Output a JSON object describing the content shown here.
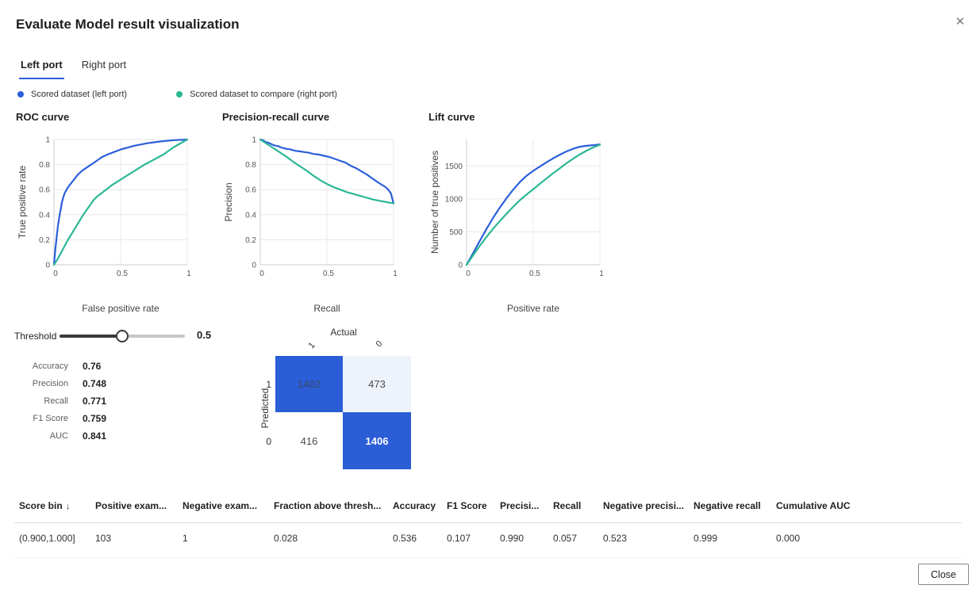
{
  "dialog": {
    "title": "Evaluate Model result visualization",
    "close_button_label": "Close"
  },
  "tabs": [
    {
      "label": "Left port",
      "active": true
    },
    {
      "label": "Right port",
      "active": false
    }
  ],
  "legend": [
    {
      "label": "Scored dataset (left port)",
      "color": "#2b5fd9"
    },
    {
      "label": "Scored dataset to compare (right port)",
      "color": "#2bb795"
    }
  ],
  "colors": {
    "series_blue": "#2b5fd9",
    "series_green": "#2bb795",
    "matrix_fill_strong": "#2b5dd6",
    "matrix_fill_light": "#edf2fb",
    "accent_blue": "#2b5fd9",
    "grid_line": "#e8e8e8",
    "axis_line": "#cccccc"
  },
  "threshold": {
    "label": "Threshold",
    "value": "0.5",
    "fraction": 0.5
  },
  "metrics": [
    {
      "label": "Accuracy",
      "value": "0.76"
    },
    {
      "label": "Precision",
      "value": "0.748"
    },
    {
      "label": "Recall",
      "value": "0.771"
    },
    {
      "label": "F1 Score",
      "value": "0.759"
    },
    {
      "label": "AUC",
      "value": "0.841"
    }
  ],
  "confusion_matrix": {
    "x_axis_label": "Actual",
    "y_axis_label": "Predicted",
    "col_labels": [
      "1",
      "0"
    ],
    "row_labels": [
      "1",
      "0"
    ],
    "cells": [
      [
        "1402",
        "473"
      ],
      [
        "416",
        "1406"
      ]
    ]
  },
  "chart_data": [
    {
      "type": "line",
      "title": "ROC curve",
      "xlabel": "False positive rate",
      "ylabel": "True positive rate",
      "xlim": [
        0,
        1
      ],
      "ylim": [
        0,
        1
      ],
      "xticks": [
        0,
        0.5,
        1
      ],
      "yticks": [
        0,
        0.2,
        0.4,
        0.6,
        0.8,
        1
      ],
      "grid": true,
      "legend_position": "top-shared",
      "series": [
        {
          "name": "Scored dataset (left port)",
          "color": "#2b5fd9",
          "points": [
            [
              0,
              0
            ],
            [
              0.005,
              0.06
            ],
            [
              0.01,
              0.12
            ],
            [
              0.02,
              0.22
            ],
            [
              0.03,
              0.31
            ],
            [
              0.04,
              0.38
            ],
            [
              0.05,
              0.44
            ],
            [
              0.06,
              0.5
            ],
            [
              0.07,
              0.54
            ],
            [
              0.08,
              0.57
            ],
            [
              0.1,
              0.61
            ],
            [
              0.12,
              0.64
            ],
            [
              0.15,
              0.68
            ],
            [
              0.18,
              0.72
            ],
            [
              0.21,
              0.75
            ],
            [
              0.25,
              0.78
            ],
            [
              0.28,
              0.8
            ],
            [
              0.32,
              0.83
            ],
            [
              0.36,
              0.86
            ],
            [
              0.4,
              0.88
            ],
            [
              0.45,
              0.9
            ],
            [
              0.5,
              0.92
            ],
            [
              0.55,
              0.935
            ],
            [
              0.6,
              0.95
            ],
            [
              0.7,
              0.97
            ],
            [
              0.8,
              0.985
            ],
            [
              0.9,
              0.995
            ],
            [
              1,
              1
            ]
          ]
        },
        {
          "name": "Scored dataset to compare (right port)",
          "color": "#2bb795",
          "points": [
            [
              0,
              0
            ],
            [
              0.03,
              0.05
            ],
            [
              0.06,
              0.11
            ],
            [
              0.1,
              0.19
            ],
            [
              0.14,
              0.26
            ],
            [
              0.18,
              0.33
            ],
            [
              0.22,
              0.4
            ],
            [
              0.26,
              0.46
            ],
            [
              0.3,
              0.52
            ],
            [
              0.33,
              0.55
            ],
            [
              0.38,
              0.59
            ],
            [
              0.44,
              0.64
            ],
            [
              0.5,
              0.68
            ],
            [
              0.56,
              0.72
            ],
            [
              0.62,
              0.76
            ],
            [
              0.68,
              0.8
            ],
            [
              0.75,
              0.84
            ],
            [
              0.82,
              0.88
            ],
            [
              0.9,
              0.94
            ],
            [
              1,
              1
            ]
          ]
        }
      ]
    },
    {
      "type": "line",
      "title": "Precision-recall curve",
      "xlabel": "Recall",
      "ylabel": "Precision",
      "xlim": [
        0,
        1
      ],
      "ylim": [
        0,
        1
      ],
      "xticks": [
        0,
        0.5,
        1
      ],
      "yticks": [
        0,
        0.2,
        0.4,
        0.6,
        0.8,
        1
      ],
      "grid": true,
      "legend_position": "top-shared",
      "series": [
        {
          "name": "Scored dataset (left port)",
          "color": "#2b5fd9",
          "points": [
            [
              0,
              1
            ],
            [
              0.02,
              0.995
            ],
            [
              0.04,
              0.98
            ],
            [
              0.06,
              0.975
            ],
            [
              0.08,
              0.965
            ],
            [
              0.1,
              0.955
            ],
            [
              0.12,
              0.95
            ],
            [
              0.14,
              0.945
            ],
            [
              0.16,
              0.935
            ],
            [
              0.18,
              0.93
            ],
            [
              0.2,
              0.925
            ],
            [
              0.23,
              0.92
            ],
            [
              0.26,
              0.91
            ],
            [
              0.3,
              0.905
            ],
            [
              0.33,
              0.9
            ],
            [
              0.36,
              0.895
            ],
            [
              0.4,
              0.885
            ],
            [
              0.44,
              0.88
            ],
            [
              0.48,
              0.87
            ],
            [
              0.52,
              0.86
            ],
            [
              0.56,
              0.845
            ],
            [
              0.6,
              0.83
            ],
            [
              0.64,
              0.815
            ],
            [
              0.68,
              0.79
            ],
            [
              0.72,
              0.77
            ],
            [
              0.76,
              0.745
            ],
            [
              0.8,
              0.72
            ],
            [
              0.84,
              0.69
            ],
            [
              0.88,
              0.66
            ],
            [
              0.91,
              0.64
            ],
            [
              0.94,
              0.62
            ],
            [
              0.96,
              0.6
            ],
            [
              0.98,
              0.57
            ],
            [
              0.99,
              0.53
            ],
            [
              1,
              0.49
            ]
          ]
        },
        {
          "name": "Scored dataset to compare (right port)",
          "color": "#2bb795",
          "points": [
            [
              0,
              1
            ],
            [
              0.05,
              0.965
            ],
            [
              0.1,
              0.93
            ],
            [
              0.15,
              0.895
            ],
            [
              0.2,
              0.86
            ],
            [
              0.25,
              0.82
            ],
            [
              0.3,
              0.785
            ],
            [
              0.35,
              0.75
            ],
            [
              0.4,
              0.71
            ],
            [
              0.45,
              0.675
            ],
            [
              0.5,
              0.645
            ],
            [
              0.55,
              0.62
            ],
            [
              0.6,
              0.6
            ],
            [
              0.65,
              0.58
            ],
            [
              0.7,
              0.565
            ],
            [
              0.75,
              0.55
            ],
            [
              0.8,
              0.535
            ],
            [
              0.85,
              0.52
            ],
            [
              0.9,
              0.51
            ],
            [
              0.95,
              0.5
            ],
            [
              1,
              0.49
            ]
          ]
        }
      ]
    },
    {
      "type": "line",
      "title": "Lift curve",
      "xlabel": "Positive rate",
      "ylabel": "Number of true positives",
      "xlim": [
        0,
        1
      ],
      "ylim": [
        0,
        1900
      ],
      "xticks": [
        0,
        0.5,
        1
      ],
      "yticks": [
        0,
        500,
        1000,
        1500
      ],
      "grid": true,
      "legend_position": "top-shared",
      "series": [
        {
          "name": "Scored dataset (left port)",
          "color": "#2b5fd9",
          "points": [
            [
              0,
              0
            ],
            [
              0.05,
              180
            ],
            [
              0.1,
              365
            ],
            [
              0.15,
              545
            ],
            [
              0.2,
              715
            ],
            [
              0.25,
              870
            ],
            [
              0.3,
              1010
            ],
            [
              0.35,
              1140
            ],
            [
              0.4,
              1255
            ],
            [
              0.45,
              1350
            ],
            [
              0.5,
              1425
            ],
            [
              0.55,
              1490
            ],
            [
              0.6,
              1555
            ],
            [
              0.65,
              1615
            ],
            [
              0.7,
              1670
            ],
            [
              0.75,
              1720
            ],
            [
              0.8,
              1760
            ],
            [
              0.85,
              1790
            ],
            [
              0.9,
              1805
            ],
            [
              0.95,
              1815
            ],
            [
              1,
              1825
            ]
          ]
        },
        {
          "name": "Scored dataset to compare (right port)",
          "color": "#2bb795",
          "points": [
            [
              0,
              0
            ],
            [
              0.05,
              145
            ],
            [
              0.1,
              290
            ],
            [
              0.15,
              425
            ],
            [
              0.2,
              550
            ],
            [
              0.25,
              665
            ],
            [
              0.3,
              775
            ],
            [
              0.35,
              880
            ],
            [
              0.4,
              980
            ],
            [
              0.45,
              1065
            ],
            [
              0.5,
              1145
            ],
            [
              0.55,
              1230
            ],
            [
              0.6,
              1310
            ],
            [
              0.65,
              1390
            ],
            [
              0.7,
              1465
            ],
            [
              0.75,
              1540
            ],
            [
              0.8,
              1610
            ],
            [
              0.85,
              1675
            ],
            [
              0.9,
              1730
            ],
            [
              0.95,
              1780
            ],
            [
              1,
              1820
            ]
          ]
        }
      ]
    }
  ],
  "table": {
    "columns": [
      {
        "label": "Score bin",
        "sort": "↓"
      },
      {
        "label": "Positive exam..."
      },
      {
        "label": "Negative exam..."
      },
      {
        "label": "Fraction above thresh..."
      },
      {
        "label": "Accuracy"
      },
      {
        "label": "F1 Score"
      },
      {
        "label": "Precisi..."
      },
      {
        "label": "Recall"
      },
      {
        "label": "Negative precisi..."
      },
      {
        "label": "Negative recall"
      },
      {
        "label": "Cumulative AUC"
      }
    ],
    "rows": [
      [
        "(0.900,1.000]",
        "103",
        "1",
        "0.028",
        "0.536",
        "0.107",
        "0.990",
        "0.057",
        "0.523",
        "0.999",
        "0.000"
      ]
    ]
  }
}
